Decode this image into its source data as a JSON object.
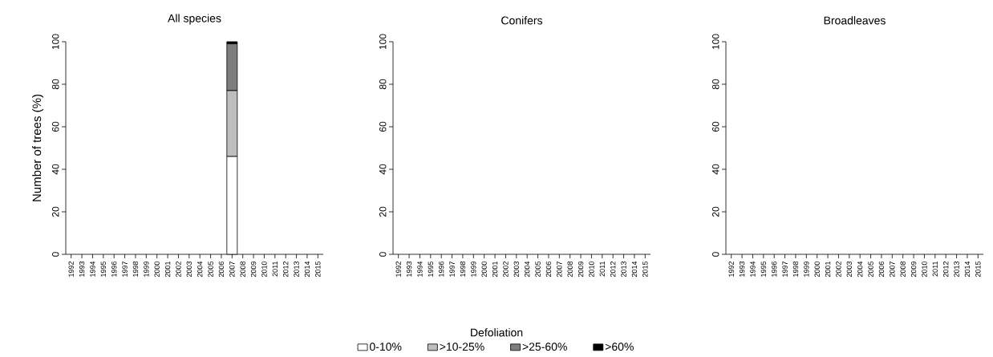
{
  "chart_data": [
    {
      "type": "bar",
      "title": "All species",
      "ylabel": "Number of trees (%)",
      "legend_title": "Defoliation",
      "legend": "bottom",
      "stacked": true,
      "categories": [
        "1992",
        "1993",
        "1994",
        "1995",
        "1996",
        "1997",
        "1998",
        "1999",
        "2000",
        "2001",
        "2002",
        "2003",
        "2004",
        "2005",
        "2006",
        "2007",
        "2008",
        "2009",
        "2010",
        "2011",
        "2012",
        "2013",
        "2014",
        "2015"
      ],
      "series": [
        {
          "name": "0-10%",
          "color": "#ffffff",
          "values": [
            null,
            null,
            null,
            null,
            null,
            null,
            null,
            null,
            null,
            null,
            null,
            null,
            null,
            null,
            null,
            46,
            null,
            null,
            null,
            null,
            null,
            null,
            null,
            null
          ]
        },
        {
          "name": ">10-25%",
          "color": "#bebebe",
          "values": [
            null,
            null,
            null,
            null,
            null,
            null,
            null,
            null,
            null,
            null,
            null,
            null,
            null,
            null,
            null,
            31,
            null,
            null,
            null,
            null,
            null,
            null,
            null,
            null
          ]
        },
        {
          "name": ">25-60%",
          "color": "#7f7f7f",
          "values": [
            null,
            null,
            null,
            null,
            null,
            null,
            null,
            null,
            null,
            null,
            null,
            null,
            null,
            null,
            null,
            22,
            null,
            null,
            null,
            null,
            null,
            null,
            null,
            null
          ]
        },
        {
          "name": ">60%",
          "color": "#000000",
          "values": [
            null,
            null,
            null,
            null,
            null,
            null,
            null,
            null,
            null,
            null,
            null,
            null,
            null,
            null,
            null,
            1,
            null,
            null,
            null,
            null,
            null,
            null,
            null,
            null
          ]
        }
      ],
      "ylim": [
        0,
        100
      ],
      "yticks": [
        0,
        20,
        40,
        60,
        80,
        100
      ]
    },
    {
      "type": "bar",
      "title": "Conifers",
      "categories": [
        "1992",
        "1993",
        "1994",
        "1995",
        "1996",
        "1997",
        "1998",
        "1999",
        "2000",
        "2001",
        "2002",
        "2003",
        "2004",
        "2005",
        "2006",
        "2007",
        "2008",
        "2009",
        "2010",
        "2011",
        "2012",
        "2013",
        "2014",
        "2015"
      ],
      "values": [
        null,
        null,
        null,
        null,
        null,
        null,
        null,
        null,
        null,
        null,
        null,
        null,
        null,
        null,
        null,
        null,
        null,
        null,
        null,
        null,
        null,
        null,
        null,
        null
      ],
      "ylim": [
        0,
        100
      ],
      "yticks": [
        0,
        20,
        40,
        60,
        80,
        100
      ]
    },
    {
      "type": "bar",
      "title": "Broadleaves",
      "categories": [
        "1992",
        "1993",
        "1994",
        "1995",
        "1996",
        "1997",
        "1998",
        "1999",
        "2000",
        "2001",
        "2002",
        "2003",
        "2004",
        "2005",
        "2006",
        "2007",
        "2008",
        "2009",
        "2010",
        "2011",
        "2012",
        "2013",
        "2014",
        "2015"
      ],
      "values": [
        null,
        null,
        null,
        null,
        null,
        null,
        null,
        null,
        null,
        null,
        null,
        null,
        null,
        null,
        null,
        null,
        null,
        null,
        null,
        null,
        null,
        null,
        null,
        null
      ],
      "ylim": [
        0,
        100
      ],
      "yticks": [
        0,
        20,
        40,
        60,
        80,
        100
      ]
    }
  ]
}
